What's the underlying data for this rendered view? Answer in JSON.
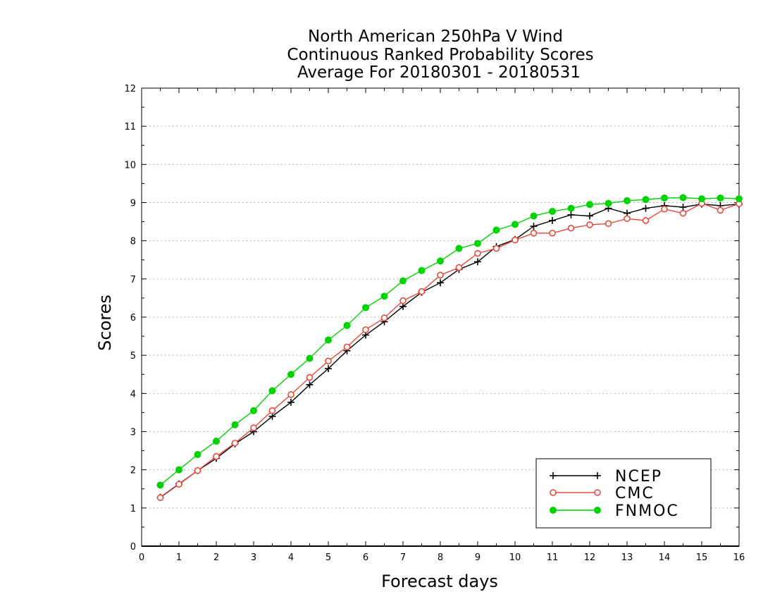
{
  "chart_data": {
    "type": "line",
    "title_lines": [
      "North American 250hPa V Wind",
      "Continuous Ranked Probability Scores",
      "Average For 20180301 - 20180531"
    ],
    "xlabel": "Forecast days",
    "ylabel": "Scores",
    "xlim": [
      0,
      16
    ],
    "ylim": [
      0,
      12
    ],
    "x_ticks": [
      "0",
      "1",
      "2",
      "3",
      "4",
      "5",
      "6",
      "7",
      "8",
      "9",
      "10",
      "11",
      "12",
      "13",
      "14",
      "15",
      "16"
    ],
    "y_ticks": [
      "0",
      "1",
      "2",
      "3",
      "4",
      "5",
      "6",
      "7",
      "8",
      "9",
      "10",
      "11",
      "12"
    ],
    "grid": "horizontal dotted",
    "legend_position": "bottom-right",
    "x": [
      0.5,
      1,
      1.5,
      2,
      2.5,
      3,
      3.5,
      4,
      4.5,
      5,
      5.5,
      6,
      6.5,
      7,
      7.5,
      8,
      8.5,
      9,
      9.5,
      10,
      10.5,
      11,
      11.5,
      12,
      12.5,
      13,
      13.5,
      14,
      14.5,
      15,
      15.5,
      16
    ],
    "series": [
      {
        "name": "NCEP",
        "color": "#000000",
        "marker": "plus",
        "values": [
          1.28,
          1.63,
          1.98,
          2.3,
          2.68,
          3.0,
          3.4,
          3.77,
          4.23,
          4.65,
          5.12,
          5.53,
          5.88,
          6.28,
          6.65,
          6.9,
          7.25,
          7.45,
          7.85,
          8.03,
          8.38,
          8.53,
          8.68,
          8.65,
          8.85,
          8.72,
          8.85,
          8.92,
          8.88,
          8.96,
          8.92,
          8.96
        ]
      },
      {
        "name": "CMC",
        "color": "#e8483c",
        "marker": "open-circle",
        "values": [
          1.27,
          1.62,
          1.98,
          2.35,
          2.7,
          3.1,
          3.55,
          3.97,
          4.42,
          4.85,
          5.22,
          5.67,
          5.98,
          6.43,
          6.67,
          7.1,
          7.3,
          7.67,
          7.8,
          8.02,
          8.2,
          8.2,
          8.33,
          8.42,
          8.45,
          8.58,
          8.53,
          8.83,
          8.72,
          8.98,
          8.8,
          8.97
        ]
      },
      {
        "name": "FNMOC",
        "color": "#00d400",
        "marker": "filled-circle",
        "values": [
          1.6,
          2.0,
          2.4,
          2.75,
          3.18,
          3.55,
          4.07,
          4.5,
          4.92,
          5.4,
          5.78,
          6.25,
          6.55,
          6.95,
          7.22,
          7.47,
          7.8,
          7.93,
          8.28,
          8.43,
          8.65,
          8.77,
          8.85,
          8.95,
          8.98,
          9.05,
          9.08,
          9.12,
          9.13,
          9.1,
          9.12,
          9.1
        ]
      }
    ]
  }
}
